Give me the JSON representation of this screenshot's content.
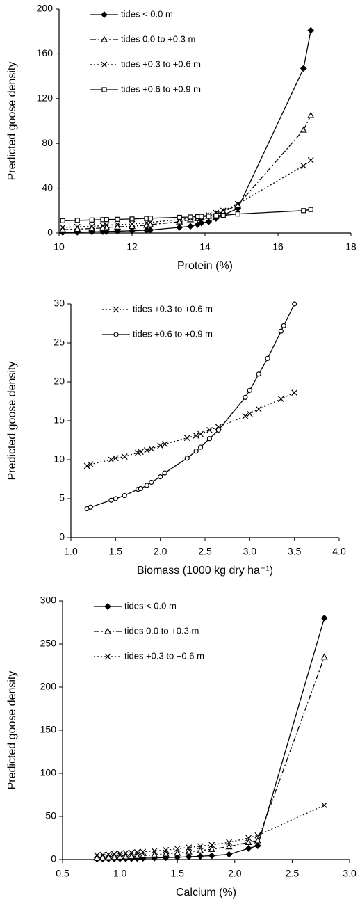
{
  "chart_data": [
    {
      "type": "line",
      "xlabel": "Protein (%)",
      "ylabel": "Predicted goose density",
      "xlim": [
        10,
        18
      ],
      "xticks": [
        10,
        12,
        14,
        16,
        18
      ],
      "ylim": [
        0,
        200
      ],
      "yticks": [
        0,
        40,
        80,
        120,
        160,
        200
      ],
      "legend": "upper left",
      "series": [
        {
          "name": "tides < 0.0 m",
          "color": "#000000",
          "marker": "diamond",
          "line": "solid",
          "x": [
            10.1,
            10.5,
            10.9,
            11.2,
            11.3,
            11.6,
            12.0,
            12.4,
            12.5,
            13.3,
            13.6,
            13.8,
            13.9,
            14.1,
            14.3,
            14.5,
            14.9,
            16.7,
            16.9
          ],
          "values": [
            0.5,
            0.7,
            1,
            1.2,
            1.3,
            1.6,
            2,
            2.5,
            2.7,
            5,
            6,
            7.5,
            9,
            10,
            13,
            16,
            22,
            147,
            181
          ]
        },
        {
          "name": "tides 0.0 to +0.3 m",
          "color": "#000000",
          "marker": "triangle",
          "line": "dashdot",
          "x": [
            10.1,
            10.5,
            10.9,
            11.2,
            11.3,
            11.6,
            12.0,
            12.4,
            12.5,
            13.3,
            13.6,
            13.8,
            13.9,
            14.1,
            14.3,
            14.5,
            14.9,
            16.7,
            16.9
          ],
          "values": [
            3,
            3.5,
            4,
            4.5,
            5,
            5.5,
            6,
            7,
            7.5,
            10,
            12,
            13,
            14,
            15,
            17,
            19,
            25,
            92,
            105
          ]
        },
        {
          "name": "tides +0.3 to +0.6 m",
          "color": "#000000",
          "marker": "x",
          "line": "dotted",
          "x": [
            10.1,
            10.5,
            10.9,
            11.2,
            11.3,
            11.6,
            12.0,
            12.4,
            12.5,
            13.3,
            13.6,
            13.8,
            13.9,
            14.1,
            14.3,
            14.5,
            14.9,
            16.7,
            16.9
          ],
          "values": [
            5,
            5.5,
            6,
            6.5,
            7,
            7.5,
            8,
            9,
            9.5,
            12,
            13,
            14,
            15,
            16,
            18,
            20,
            26,
            60,
            65
          ]
        },
        {
          "name": "tides +0.6 to +0.9 m",
          "color": "#000000",
          "marker": "square",
          "line": "solid",
          "x": [
            10.1,
            10.5,
            10.9,
            11.2,
            11.3,
            11.6,
            12.0,
            12.4,
            12.5,
            13.3,
            13.6,
            13.8,
            13.9,
            14.1,
            14.3,
            14.5,
            14.9,
            16.7,
            16.9
          ],
          "values": [
            11,
            11.3,
            11.6,
            11.9,
            12,
            12.2,
            12.5,
            13,
            13.2,
            14,
            14.3,
            14.6,
            14.8,
            15,
            15.4,
            15.8,
            17,
            20,
            21
          ]
        }
      ]
    },
    {
      "type": "line",
      "xlabel": "Biomass (1000 kg dry ha⁻¹)",
      "ylabel": "Predicted goose density",
      "xlim": [
        1,
        4
      ],
      "xticks": [
        {
          "value": 1,
          "label": "1.0"
        },
        {
          "value": 1.5,
          "label": "1.5"
        },
        {
          "value": 2,
          "label": "2.0"
        },
        {
          "value": 2.5,
          "label": "2.5"
        },
        {
          "value": 3,
          "label": "3.0"
        },
        {
          "value": 3.5,
          "label": "3.5"
        },
        {
          "value": 4,
          "label": "4.0"
        }
      ],
      "ylim": [
        0,
        30
      ],
      "yticks": [
        0,
        5,
        10,
        15,
        20,
        25,
        30
      ],
      "legend": "upper left",
      "series": [
        {
          "name": "tides +0.3 to +0.6 m",
          "color": "#000000",
          "marker": "x",
          "line": "dotted",
          "x": [
            1.18,
            1.22,
            1.45,
            1.5,
            1.6,
            1.75,
            1.78,
            1.85,
            1.9,
            2.0,
            2.05,
            2.3,
            2.4,
            2.45,
            2.55,
            2.65,
            2.95,
            3.0,
            3.1,
            3.35,
            3.5
          ],
          "values": [
            9.2,
            9.4,
            10,
            10.2,
            10.4,
            10.9,
            11,
            11.2,
            11.4,
            11.8,
            12,
            12.8,
            13.1,
            13.3,
            13.8,
            14.2,
            15.6,
            15.9,
            16.5,
            17.8,
            18.6
          ]
        },
        {
          "name": "tides +0.6 to +0.9 m",
          "color": "#000000",
          "marker": "circle",
          "line": "solid",
          "x": [
            1.18,
            1.22,
            1.45,
            1.5,
            1.6,
            1.75,
            1.78,
            1.85,
            1.9,
            2.0,
            2.05,
            2.3,
            2.4,
            2.45,
            2.55,
            2.65,
            2.95,
            3.0,
            3.1,
            3.2,
            3.35,
            3.38,
            3.5
          ],
          "values": [
            3.7,
            3.9,
            4.8,
            5.0,
            5.4,
            6.2,
            6.3,
            6.7,
            7.1,
            7.8,
            8.3,
            10.2,
            11.1,
            11.6,
            12.7,
            13.8,
            18,
            18.9,
            21,
            23,
            26.5,
            27.2,
            30
          ]
        }
      ]
    },
    {
      "type": "line",
      "xlabel": "Calcium (%)",
      "ylabel": "Predicted goose density",
      "xlim": [
        0.5,
        3
      ],
      "xticks": [
        0.5,
        {
          "value": 1,
          "label": "1.0"
        },
        1.5,
        {
          "value": 2,
          "label": "2.0"
        },
        2.5,
        {
          "value": 3,
          "label": "3.0"
        }
      ],
      "ylim": [
        0,
        300
      ],
      "yticks": [
        0,
        50,
        100,
        150,
        200,
        250,
        300
      ],
      "legend": "upper left",
      "series": [
        {
          "name": "tides < 0.0 m",
          "color": "#000000",
          "marker": "diamond",
          "line": "solid",
          "x": [
            0.8,
            0.85,
            0.9,
            0.95,
            1.0,
            1.05,
            1.1,
            1.15,
            1.2,
            1.3,
            1.4,
            1.5,
            1.6,
            1.7,
            1.8,
            1.95,
            2.12,
            2.2,
            2.78
          ],
          "values": [
            0.5,
            0.6,
            0.7,
            0.8,
            0.9,
            1,
            1.1,
            1.3,
            1.5,
            1.8,
            2.2,
            2.6,
            3.2,
            3.8,
            4.5,
            6,
            13,
            16,
            280
          ]
        },
        {
          "name": "tides 0.0 to +0.3 m",
          "color": "#000000",
          "marker": "triangle",
          "line": "dashdot",
          "x": [
            0.8,
            0.85,
            0.9,
            0.95,
            1.0,
            1.05,
            1.1,
            1.15,
            1.2,
            1.3,
            1.4,
            1.5,
            1.6,
            1.7,
            1.8,
            1.95,
            2.12,
            2.2,
            2.78
          ],
          "values": [
            2,
            2.2,
            2.5,
            2.8,
            3,
            3.3,
            3.6,
            4,
            4.5,
            5.5,
            6.5,
            7.5,
            9,
            10.5,
            12,
            15,
            20,
            22,
            235
          ]
        },
        {
          "name": "tides +0.3 to +0.6 m",
          "color": "#000000",
          "marker": "x",
          "line": "dotted",
          "x": [
            0.8,
            0.85,
            0.9,
            0.95,
            1.0,
            1.05,
            1.1,
            1.15,
            1.2,
            1.3,
            1.4,
            1.5,
            1.6,
            1.7,
            1.8,
            1.95,
            2.12,
            2.2,
            2.78
          ],
          "values": [
            5,
            5.5,
            6,
            6.5,
            7,
            7.5,
            8,
            8.5,
            9,
            10,
            11,
            12.5,
            14,
            15.5,
            17,
            20,
            25,
            28,
            63
          ]
        }
      ]
    }
  ]
}
